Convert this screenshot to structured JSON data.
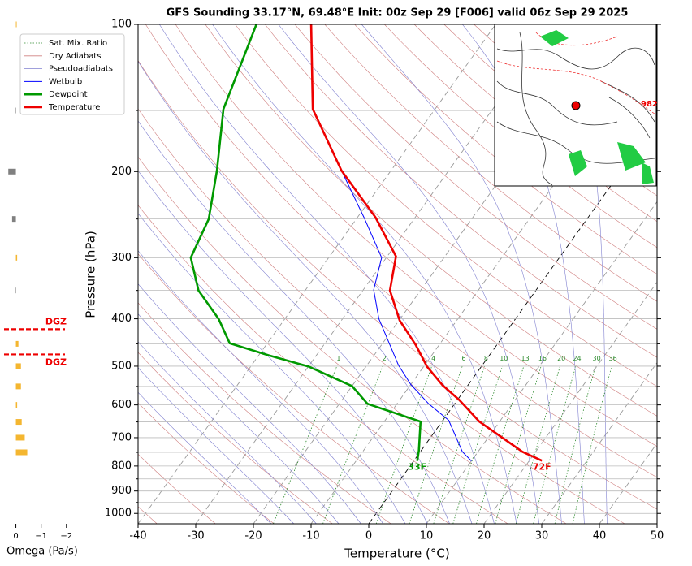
{
  "chart_data": [
    {
      "type": "skewt",
      "title": "GFS Sounding 33.17°N, 69.48°E Init: 00z Sep 29 [F006] valid 06z Sep 29 2025",
      "xlabel": "Temperature (°C)",
      "ylabel": "Pressure (hPa)",
      "xlim": [
        -40,
        50
      ],
      "xticks": [
        -40,
        -30,
        -20,
        -10,
        0,
        10,
        20,
        30,
        40,
        50
      ],
      "ylim": [
        1050,
        100
      ],
      "yticks": [
        100,
        200,
        300,
        400,
        500,
        600,
        700,
        800,
        900,
        1000
      ],
      "yminor": [
        150,
        250,
        350,
        450,
        550,
        650,
        750,
        850,
        950
      ],
      "log_scale_y": true,
      "grid": true,
      "background_lines": [
        {
          "name": "Sat. Mix. Ratio",
          "color": "#2e8b2e"
        },
        {
          "name": "Dry Adiabats",
          "color": "#d08080"
        },
        {
          "name": "Pseudoadiabats",
          "color": "#8080d0"
        }
      ],
      "mixing_ratios": [
        1,
        2,
        4,
        6,
        8,
        10,
        13,
        16,
        20,
        24,
        30,
        36
      ],
      "series": [
        {
          "name": "Wetbulb",
          "color": "#0000ff",
          "pressure": [
            781,
            748,
            645,
            597,
            545,
            498,
            400,
            349,
            300,
            248,
            199,
            149
          ],
          "values": [
            10.0,
            7.3,
            1.0,
            -4.5,
            -10.0,
            -14.5,
            -23.7,
            -28.2,
            -30.8,
            -38.9,
            -48.6,
            -61.2
          ]
        },
        {
          "name": "Dewpoint",
          "color": "#009900",
          "surface_label": "33F",
          "pressure": [
            781,
            744,
            649,
            597,
            549,
            501,
            475,
            449,
            400,
            350,
            300,
            250,
            199,
            149,
            100
          ],
          "values": [
            0.6,
            -0.4,
            -3.7,
            -15.1,
            -20.0,
            -29.9,
            -38.3,
            -46.5,
            -51.5,
            -58.5,
            -63.9,
            -65.6,
            -70.2,
            -76.7,
            -81.5
          ]
        },
        {
          "name": "Temperature",
          "color": "#ee0000",
          "surface_label": "72F",
          "pressure": [
            780,
            748,
            649,
            586,
            547,
            501,
            452,
            403,
            350,
            298,
            248,
            199,
            149,
            100
          ],
          "values": [
            22.2,
            17.7,
            6.5,
            0.3,
            -4.4,
            -9.4,
            -14.1,
            -19.9,
            -25.3,
            -28.5,
            -36.9,
            -48.6,
            -61.2,
            -72.0
          ]
        }
      ],
      "legend": "upper left",
      "inset_map": {
        "label": "982"
      }
    },
    {
      "type": "omega-bar",
      "xlabel": "Omega (Pa/s)",
      "xlim": [
        0.5,
        -2.2
      ],
      "xticks": [
        0,
        {
          "value": -1,
          "label": "−1"
        },
        {
          "value": -2,
          "label": "−2"
        }
      ],
      "ylim": [
        1050,
        100
      ],
      "pressure": [
        750,
        700,
        650,
        600,
        550,
        500,
        450,
        350,
        300,
        250,
        200,
        150,
        100
      ],
      "values": [
        -0.45,
        -0.35,
        -0.23,
        -0.05,
        -0.2,
        -0.2,
        -0.1,
        0.05,
        -0.05,
        0.15,
        0.3,
        0.05,
        -0.02
      ],
      "negative_color": "#f4b630",
      "positive_color": "#808080",
      "dgz": {
        "label": "DGZ",
        "pressures": [
          420,
          473
        ],
        "color": "#ee0000"
      }
    }
  ]
}
